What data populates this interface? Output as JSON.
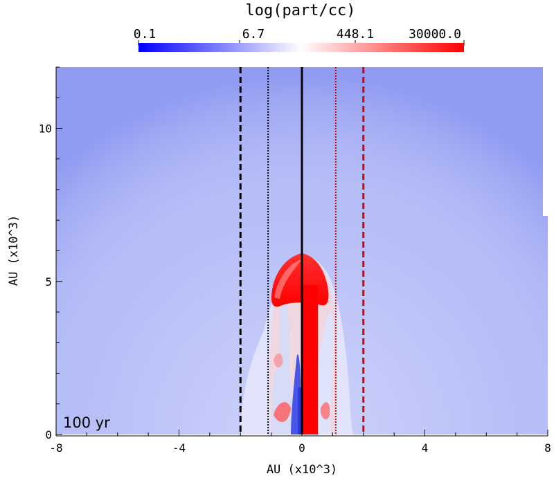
{
  "chart_data": {
    "type": "heatmap",
    "title": "log(part/cc)",
    "colorbar": {
      "scale": "log",
      "ticks": [
        "0.1",
        "6.7",
        "448.1",
        "30000.0"
      ],
      "range": [
        0.1,
        30000.0
      ],
      "colors": [
        "#0000ff",
        "#ffffff",
        "#ff0000"
      ]
    },
    "xlabel": "AU (x10^3)",
    "ylabel": "AU (x10^3)",
    "xlim": [
      -8,
      8
    ],
    "ylim": [
      0,
      12
    ],
    "x_ticks": [
      -8,
      -4,
      0,
      4,
      8
    ],
    "y_ticks": [
      0,
      5,
      10
    ],
    "time_label": "100 yr",
    "background_field": {
      "description_of_content": "concentric density rings centered at origin",
      "ring_spacing": 0.9,
      "base_level_color": "#5c6cf4"
    },
    "vertical_lines": [
      {
        "x": -2,
        "color": "#000000",
        "style": "dashed"
      },
      {
        "x": -1.1,
        "color": "#000000",
        "style": "dotted"
      },
      {
        "x": 0,
        "color": "#000000",
        "style": "solid"
      },
      {
        "x": 1.1,
        "color": "#dd0000",
        "style": "dotted"
      },
      {
        "x": 2,
        "color": "#dd0000",
        "style": "dashed"
      }
    ],
    "jet": {
      "core_x_range": [
        0,
        0.55
      ],
      "core_top": 4.8,
      "cap_top": 5.9
    }
  }
}
